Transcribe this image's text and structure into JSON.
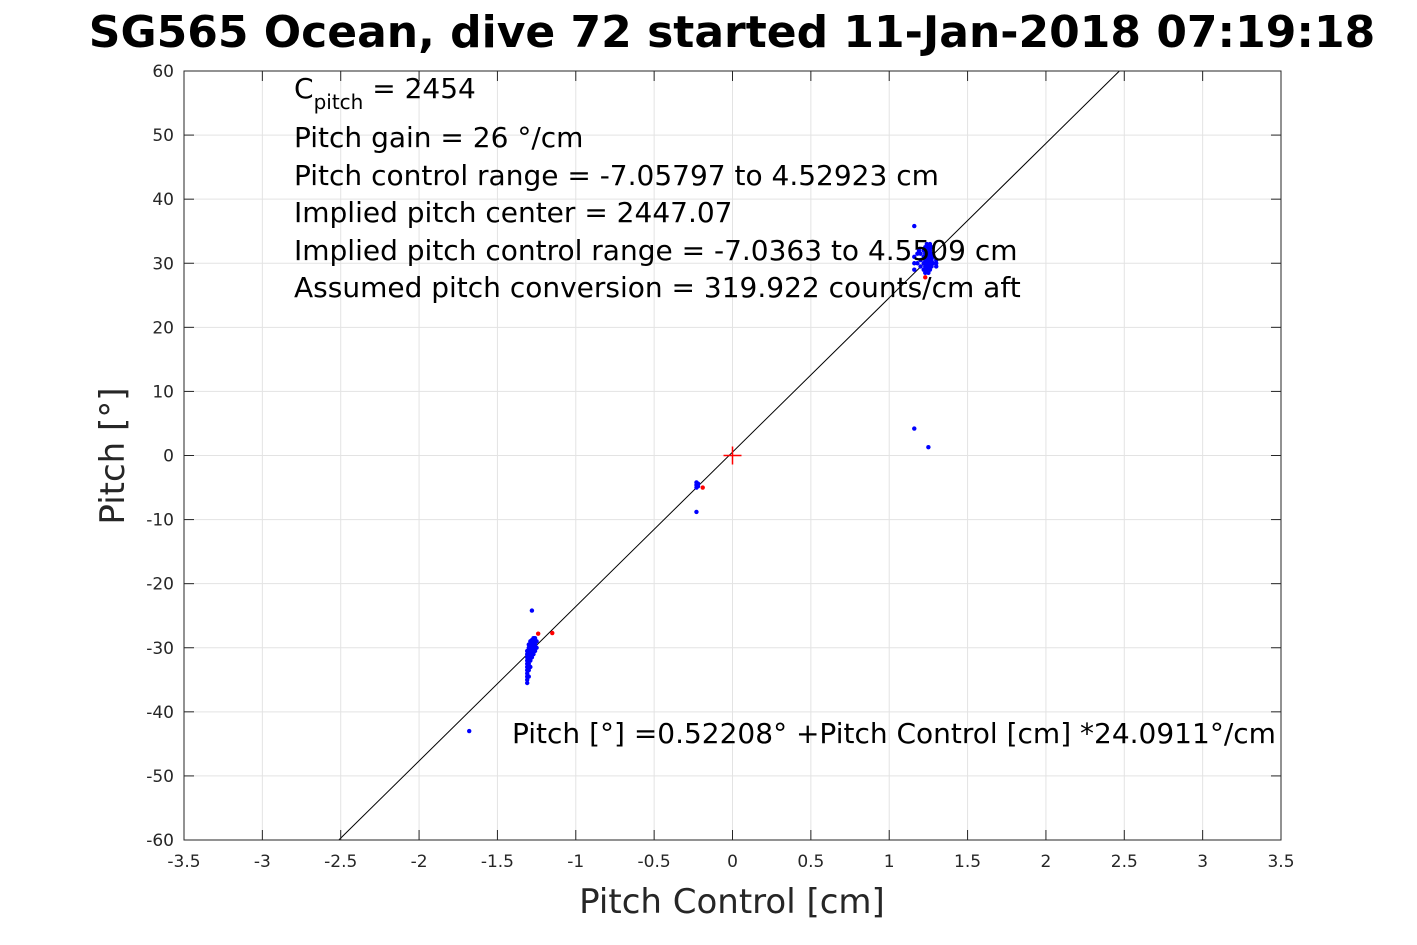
{
  "chart_data": {
    "type": "scatter",
    "title": "SG565 Ocean, dive 72 started 11-Jan-2018 07:19:18",
    "xlabel": "Pitch Control [cm]",
    "ylabel": "Pitch [°]",
    "xlim": [
      -3.5,
      3.5
    ],
    "ylim": [
      -60,
      60
    ],
    "xticks": [
      -3.5,
      -3,
      -2.5,
      -2,
      -1.5,
      -1,
      -0.5,
      0,
      0.5,
      1,
      1.5,
      2,
      2.5,
      3,
      3.5
    ],
    "yticks": [
      -60,
      -50,
      -40,
      -30,
      -20,
      -10,
      0,
      10,
      20,
      30,
      40,
      50,
      60
    ],
    "grid": true,
    "annotations": {
      "c_pitch_main": "C",
      "c_pitch_sub": "pitch",
      "c_pitch_value": " = 2454",
      "pitch_gain": "Pitch gain = 26 °/cm",
      "pitch_control_range": "Pitch control range = -7.05797 to 4.52923 cm",
      "implied_pitch_center": "Implied pitch center = 2447.07",
      "implied_pitch_control_range": "Implied pitch control range = -7.0363 to 4.5509 cm",
      "assumed_pitch_conversion": "Assumed pitch conversion = 319.922 counts/cm aft",
      "fit_equation": "Pitch [°] =0.52208° +Pitch Control [cm] *24.0911°/cm"
    },
    "fit_line": {
      "intercept": 0.52208,
      "slope": 24.0911,
      "color": "#000000"
    },
    "center_marker": {
      "x": 0,
      "y": 0,
      "marker": "+",
      "color": "#ff0000"
    },
    "series": [
      {
        "color": "#0000ff",
        "points": [
          [
            -1.68,
            -43.0
          ],
          [
            -1.28,
            -24.2
          ],
          [
            -1.31,
            -35.5
          ],
          [
            -1.31,
            -35.0
          ],
          [
            -1.31,
            -34.5
          ],
          [
            -1.31,
            -34.0
          ],
          [
            -1.31,
            -33.5
          ],
          [
            -1.31,
            -33.0
          ],
          [
            -1.31,
            -32.5
          ],
          [
            -1.31,
            -32.0
          ],
          [
            -1.31,
            -31.5
          ],
          [
            -1.31,
            -31.0
          ],
          [
            -1.31,
            -30.5
          ],
          [
            -1.3,
            -34.5
          ],
          [
            -1.3,
            -33.5
          ],
          [
            -1.3,
            -32.5
          ],
          [
            -1.3,
            -31.5
          ],
          [
            -1.3,
            -30.5
          ],
          [
            -1.3,
            -30.0
          ],
          [
            -1.3,
            -29.5
          ],
          [
            -1.29,
            -33.0
          ],
          [
            -1.29,
            -32.0
          ],
          [
            -1.29,
            -31.0
          ],
          [
            -1.29,
            -30.0
          ],
          [
            -1.29,
            -29.0
          ],
          [
            -1.28,
            -31.5
          ],
          [
            -1.28,
            -30.5
          ],
          [
            -1.28,
            -29.5
          ],
          [
            -1.28,
            -28.8
          ],
          [
            -1.27,
            -31.0
          ],
          [
            -1.27,
            -30.0
          ],
          [
            -1.27,
            -29.0
          ],
          [
            -1.27,
            -28.5
          ],
          [
            -1.26,
            -30.5
          ],
          [
            -1.26,
            -29.5
          ],
          [
            -1.26,
            -28.5
          ],
          [
            -1.25,
            -30.0
          ],
          [
            -1.25,
            -29.0
          ],
          [
            -0.23,
            -4.2
          ],
          [
            -0.23,
            -4.6
          ],
          [
            -0.23,
            -5.0
          ],
          [
            -0.22,
            -4.4
          ],
          [
            -0.22,
            -4.8
          ],
          [
            -0.23,
            -8.8
          ],
          [
            1.16,
            35.8
          ],
          [
            1.16,
            4.2
          ],
          [
            1.25,
            1.3
          ],
          [
            1.16,
            29.0
          ],
          [
            1.16,
            30.0
          ],
          [
            1.16,
            31.0
          ],
          [
            1.18,
            30.0
          ],
          [
            1.18,
            31.5
          ],
          [
            1.19,
            32.0
          ],
          [
            1.2,
            29.5
          ],
          [
            1.2,
            30.5
          ],
          [
            1.2,
            31.5
          ],
          [
            1.22,
            29.0
          ],
          [
            1.22,
            30.0
          ],
          [
            1.22,
            31.0
          ],
          [
            1.22,
            32.0
          ],
          [
            1.23,
            28.5
          ],
          [
            1.23,
            29.5
          ],
          [
            1.23,
            30.5
          ],
          [
            1.23,
            31.5
          ],
          [
            1.23,
            32.5
          ],
          [
            1.24,
            29.0
          ],
          [
            1.24,
            30.0
          ],
          [
            1.24,
            31.0
          ],
          [
            1.24,
            32.0
          ],
          [
            1.24,
            33.0
          ],
          [
            1.25,
            28.5
          ],
          [
            1.25,
            29.5
          ],
          [
            1.25,
            30.5
          ],
          [
            1.25,
            31.5
          ],
          [
            1.25,
            32.5
          ],
          [
            1.26,
            29.0
          ],
          [
            1.26,
            30.0
          ],
          [
            1.26,
            31.0
          ],
          [
            1.26,
            32.0
          ],
          [
            1.26,
            33.0
          ],
          [
            1.27,
            29.5
          ],
          [
            1.27,
            30.5
          ],
          [
            1.27,
            31.5
          ],
          [
            1.27,
            32.5
          ],
          [
            1.28,
            30.0
          ],
          [
            1.28,
            31.0
          ],
          [
            1.3,
            29.5
          ],
          [
            1.3,
            30.0
          ],
          [
            1.3,
            30.5
          ]
        ]
      },
      {
        "color": "#ff0000",
        "points": [
          [
            -1.24,
            -27.8
          ],
          [
            -1.15,
            -27.7
          ],
          [
            -0.19,
            -5.0
          ],
          [
            1.23,
            27.8
          ]
        ]
      }
    ]
  }
}
